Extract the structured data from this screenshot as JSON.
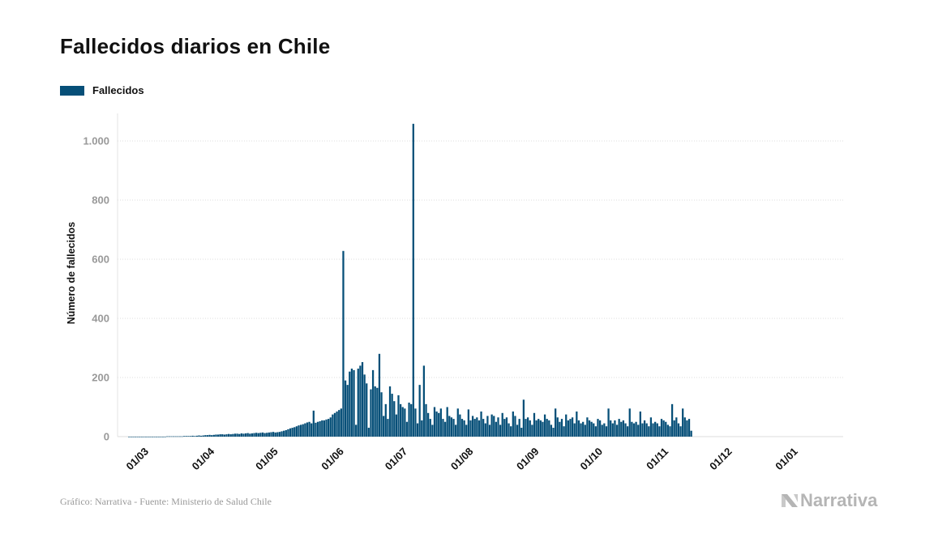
{
  "title": "Fallecidos diarios en Chile",
  "legend": {
    "label": "Fallecidos",
    "color": "#064f78"
  },
  "source": "Gráfico: Narrativa - Fuente: Ministerio de Salud Chile",
  "brand": "Narrativa",
  "chart_data": {
    "type": "bar",
    "title": "Fallecidos diarios en Chile",
    "xlabel": "",
    "ylabel": "Número de fallecidos",
    "ylim": [
      0,
      1100
    ],
    "yticks": [
      0,
      200,
      400,
      600,
      800,
      1000
    ],
    "ytick_labels": [
      "0",
      "200",
      "400",
      "600",
      "800",
      "1.000"
    ],
    "xtick_labels": [
      "01/03",
      "01/04",
      "01/05",
      "01/06",
      "01/07",
      "01/08",
      "01/09",
      "01/10",
      "01/11",
      "01/12",
      "01/01"
    ],
    "xtick_day_index": [
      0,
      31,
      61,
      92,
      122,
      153,
      184,
      214,
      245,
      275,
      306
    ],
    "start_date": "01/03",
    "color": "#064f78",
    "values": [
      0,
      0,
      0,
      0,
      0,
      0,
      0,
      0,
      0,
      0,
      0,
      0,
      0,
      0,
      0,
      0,
      0,
      0,
      1,
      1,
      1,
      1,
      1,
      1,
      1,
      1,
      2,
      2,
      2,
      2,
      3,
      2,
      3,
      4,
      3,
      4,
      5,
      5,
      6,
      5,
      6,
      7,
      7,
      8,
      8,
      7,
      8,
      9,
      8,
      9,
      10,
      10,
      9,
      11,
      10,
      11,
      12,
      10,
      11,
      12,
      13,
      12,
      13,
      14,
      12,
      13,
      14,
      15,
      16,
      14,
      15,
      16,
      18,
      20,
      22,
      25,
      28,
      30,
      32,
      35,
      38,
      40,
      42,
      45,
      48,
      50,
      45,
      88,
      47,
      50,
      52,
      55,
      55,
      58,
      60,
      65,
      75,
      80,
      85,
      90,
      95,
      628,
      190,
      175,
      220,
      230,
      225,
      40,
      230,
      240,
      252,
      210,
      180,
      30,
      160,
      225,
      170,
      165,
      280,
      150,
      70,
      110,
      60,
      170,
      145,
      120,
      75,
      140,
      110,
      100,
      95,
      50,
      115,
      110,
      1058,
      95,
      45,
      175,
      55,
      240,
      110,
      80,
      60,
      40,
      100,
      85,
      80,
      95,
      60,
      50,
      100,
      70,
      65,
      60,
      40,
      95,
      75,
      60,
      55,
      40,
      92,
      55,
      70,
      60,
      65,
      55,
      85,
      60,
      45,
      70,
      40,
      75,
      70,
      50,
      65,
      40,
      80,
      60,
      65,
      45,
      35,
      85,
      70,
      40,
      60,
      30,
      125,
      60,
      65,
      55,
      40,
      80,
      55,
      60,
      55,
      50,
      75,
      60,
      55,
      40,
      30,
      95,
      65,
      50,
      60,
      35,
      75,
      55,
      60,
      65,
      45,
      85,
      55,
      45,
      50,
      40,
      65,
      55,
      50,
      45,
      35,
      60,
      55,
      40,
      45,
      35,
      95,
      55,
      45,
      55,
      40,
      60,
      50,
      55,
      45,
      35,
      95,
      50,
      45,
      50,
      40,
      85,
      45,
      55,
      45,
      35,
      65,
      45,
      50,
      45,
      35,
      60,
      55,
      50,
      40,
      35,
      110,
      55,
      65,
      45,
      35,
      95,
      65,
      55,
      60,
      20
    ]
  }
}
